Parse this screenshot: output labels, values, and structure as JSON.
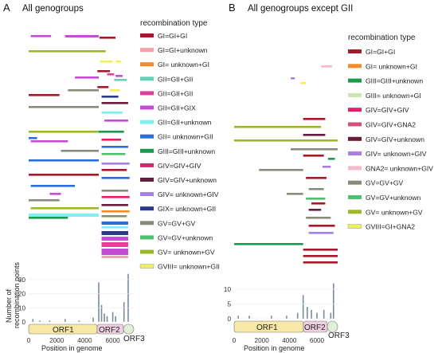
{
  "panels": [
    {
      "letter": "A",
      "title": "All genogroups",
      "legend_title": "recombination type",
      "legend": [
        {
          "label": "GI=GI+GI",
          "color": "#a31a2a"
        },
        {
          "label": "GI=GI+unknown",
          "color": "#f4a3a8"
        },
        {
          "label": "GI= unknown+GI",
          "color": "#f28c28"
        },
        {
          "label": "GII=GII+GII",
          "color": "#66d0b8"
        },
        {
          "label": "GII=GII+GII",
          "color": "#e0409a"
        },
        {
          "label": "GII=GII+GIX",
          "color": "#c44bd4"
        },
        {
          "label": "GII=GII+unknown",
          "color": "#7af0f0"
        },
        {
          "label": "GII= unknown+GII",
          "color": "#2a6fd8"
        },
        {
          "label": "GIII=GIII+unknown",
          "color": "#1a9a4a"
        },
        {
          "label": "GIV=GIV+GIV",
          "color": "#e0206a"
        },
        {
          "label": "GIV=GIV+unknown",
          "color": "#6a1a3a"
        },
        {
          "label": "GIV= unknown+GIV",
          "color": "#a87ee0"
        },
        {
          "label": "GIX= unknown+GII",
          "color": "#2a3a8a"
        },
        {
          "label": "GV=GV+GV",
          "color": "#8a8a7a"
        },
        {
          "label": "GV=GV+unknown",
          "color": "#4cc26a"
        },
        {
          "label": "GV= unknown+GV",
          "color": "#9ab82a"
        },
        {
          "label": "GVIII= unknown+GII",
          "color": "#f0f05a"
        }
      ]
    },
    {
      "letter": "B",
      "title": "All genogroups except GII",
      "legend_title": "recombination type",
      "legend": [
        {
          "label": "GI=GI+GI",
          "color": "#a31a2a"
        },
        {
          "label": "GI= unknown+GI",
          "color": "#f28c28"
        },
        {
          "label": "GIII=GIII+unknown",
          "color": "#1a9a4a"
        },
        {
          "label": "GIII= unknown+GI",
          "color": "#cde6b0"
        },
        {
          "label": "GIV=GIV+GIV",
          "color": "#e0206a"
        },
        {
          "label": "GIV=GIV+GNA2",
          "color": "#d4507a"
        },
        {
          "label": "GIV=GIV+unknown",
          "color": "#6a1a3a"
        },
        {
          "label": "GIV= unknown+GIV",
          "color": "#a87ee0"
        },
        {
          "label": "GNA2= unknown+GIV",
          "color": "#f4b8d0"
        },
        {
          "label": "GV=GV+GV",
          "color": "#8a8a7a"
        },
        {
          "label": "GV=GV+unknown",
          "color": "#4cc26a"
        },
        {
          "label": "GV= unknown+GV",
          "color": "#9ab82a"
        },
        {
          "label": "GVIII=GI+GNA2",
          "color": "#f0f05a"
        }
      ]
    }
  ],
  "axis": {
    "xlabel": "Position in genome",
    "ylabel": "Number of recombination points",
    "orfs": [
      "ORF1",
      "ORF2",
      "ORF3"
    ]
  },
  "chart_data": [
    {
      "type": "bar",
      "title": "All genogroups",
      "xlabel": "Position in genome",
      "ylabel": "Number of recombination points",
      "xlim": [
        0,
        7500
      ],
      "ylim": [
        0,
        35
      ],
      "x_ticks": [
        0,
        2000,
        4000,
        6000
      ],
      "y_ticks": [
        0,
        10,
        20,
        30
      ],
      "x": [
        300,
        800,
        1500,
        2600,
        3600,
        4600,
        5000,
        5200,
        5400,
        5600,
        6000,
        6200,
        6800,
        7100
      ],
      "values": [
        2,
        1,
        1,
        2,
        1,
        3,
        28,
        12,
        6,
        4,
        7,
        4,
        14,
        34
      ]
    },
    {
      "type": "bar",
      "title": "All genogroups except GII",
      "xlabel": "Position in genome",
      "ylabel": "Number of recombination points",
      "xlim": [
        0,
        7500
      ],
      "ylim": [
        0,
        14
      ],
      "x_ticks": [
        0,
        2000,
        4000,
        6000
      ],
      "y_ticks": [
        0,
        5,
        10
      ],
      "x": [
        300,
        1100,
        2700,
        3800,
        4600,
        5000,
        5300,
        5600,
        6000,
        6500,
        7000,
        7200
      ],
      "values": [
        1,
        1,
        1,
        1,
        2,
        8,
        4,
        3,
        2,
        3,
        2,
        12
      ]
    }
  ]
}
